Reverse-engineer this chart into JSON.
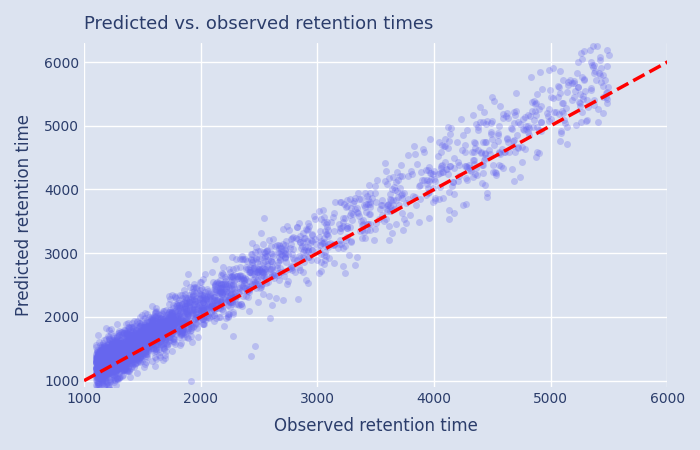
{
  "title": "Predicted vs. observed retention times",
  "xlabel": "Observed retention time",
  "ylabel": "Predicted retention time",
  "xlim": [
    1000,
    6000
  ],
  "ylim": [
    900,
    6300
  ],
  "xticks": [
    1000,
    2000,
    3000,
    4000,
    5000,
    6000
  ],
  "yticks": [
    1000,
    2000,
    3000,
    4000,
    5000,
    6000
  ],
  "scatter_color": "#6666ee",
  "scatter_alpha": 0.3,
  "scatter_size": 25,
  "line_color": "red",
  "line_style": "--",
  "line_width": 2.5,
  "background_color": "#dce3f0",
  "grid_color": "#ffffff",
  "title_color": "#2b3d6b",
  "label_color": "#2b3d6b",
  "tick_color": "#2b3d6b",
  "n_points": 3000,
  "seed": 7,
  "figsize": [
    7.0,
    4.5
  ],
  "dpi": 100
}
